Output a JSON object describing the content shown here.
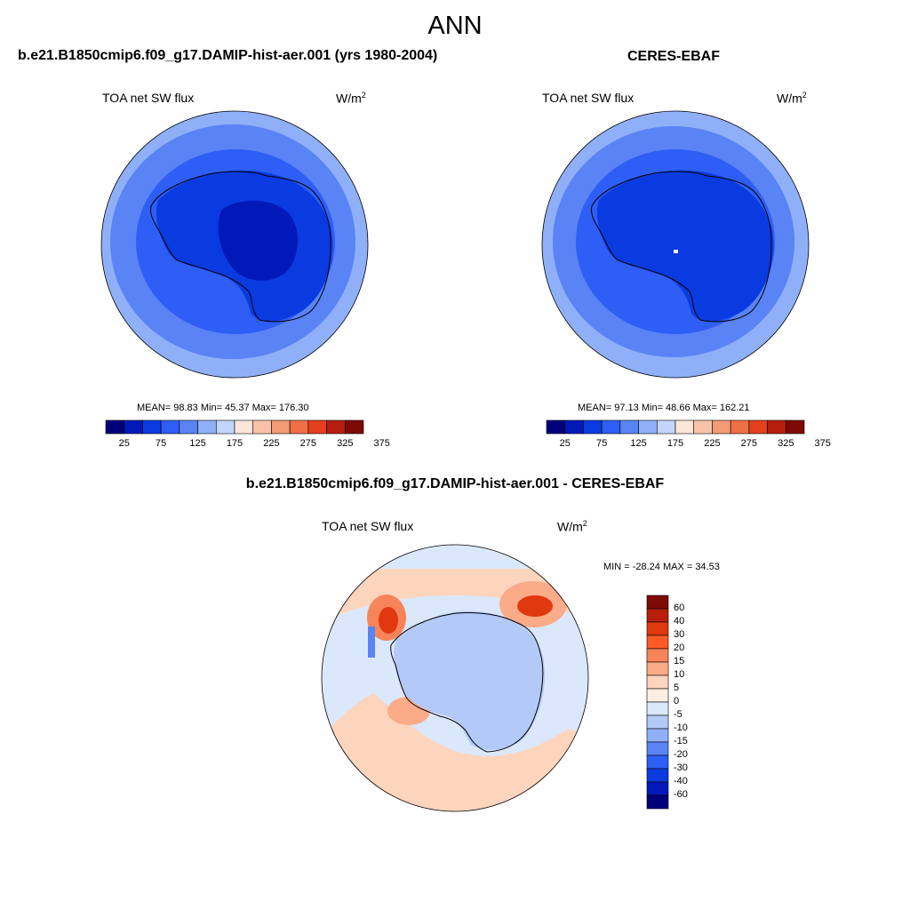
{
  "title": "ANN",
  "panels": [
    {
      "title": "b.e21.B1850cmip6.f09_g17.DAMIP-hist-aer.001 (yrs 1980-2004)",
      "variable": "TOA net SW flux",
      "units": "W/m",
      "units_exp": "2",
      "stats_text": "MEAN=  98.83  Min=  45.37  Max= 176.30",
      "mean": 98.83,
      "min": 45.37,
      "max": 176.3
    },
    {
      "title": "CERES-EBAF",
      "variable": "TOA net SW flux",
      "units": "W/m",
      "units_exp": "2",
      "stats_text": "MEAN=  97.13  Min=  48.66  Max= 162.21",
      "mean": 97.13,
      "min": 48.66,
      "max": 162.21
    },
    {
      "title": "b.e21.B1850cmip6.f09_g17.DAMIP-hist-aer.001 - CERES-EBAF",
      "variable": "TOA net SW flux",
      "units": "W/m",
      "units_exp": "2",
      "stats_text": "MIN = -28.24 MAX =  34.53",
      "min": -28.24,
      "max": 34.53
    }
  ],
  "colorbar_abs": {
    "tick_labels": [
      "25",
      "75",
      "125",
      "175",
      "225",
      "275",
      "325",
      "375"
    ],
    "colors": [
      "#00007a",
      "#0019b8",
      "#0a3be0",
      "#2e5ef5",
      "#5a83f5",
      "#8fb0f8",
      "#c2d6fb",
      "#fbe6d8",
      "#f8c2a8",
      "#f39b76",
      "#ef6f47",
      "#e4401e",
      "#b71e0d",
      "#7d0a05"
    ]
  },
  "colorbar_diff": {
    "tick_labels": [
      "60",
      "40",
      "30",
      "20",
      "15",
      "10",
      "5",
      "0",
      "-5",
      "-10",
      "-15",
      "-20",
      "-30",
      "-40",
      "-60"
    ],
    "colors": [
      "#7d0a05",
      "#b71e0d",
      "#e0380f",
      "#ff5a26",
      "#f8845a",
      "#fbab88",
      "#fdd4bc",
      "#fdeee2",
      "#dbe8fb",
      "#b3c9f7",
      "#8fb0f8",
      "#5a83f5",
      "#2e5ef5",
      "#0a3be0",
      "#0019b8",
      "#00007a"
    ]
  },
  "map_colors": {
    "model": {
      "ring1": "#8fb0f8",
      "ring2": "#5a83f5",
      "ring3": "#2e5ef5",
      "ring4": "#0a3be0",
      "core": "#0019b8"
    },
    "obs": {
      "ring1": "#8fb0f8",
      "ring2": "#5a83f5",
      "ring3": "#2e5ef5",
      "ring4": "#0a3be0",
      "core": "#0a3be0"
    },
    "diff": {
      "base": "#dbe8fb",
      "warm1": "#fdd4bc",
      "warm2": "#fbab88",
      "warm3": "#f8845a",
      "warm4": "#e0380f",
      "cool1": "#b3c9f7",
      "cool2": "#5a83f5"
    }
  }
}
